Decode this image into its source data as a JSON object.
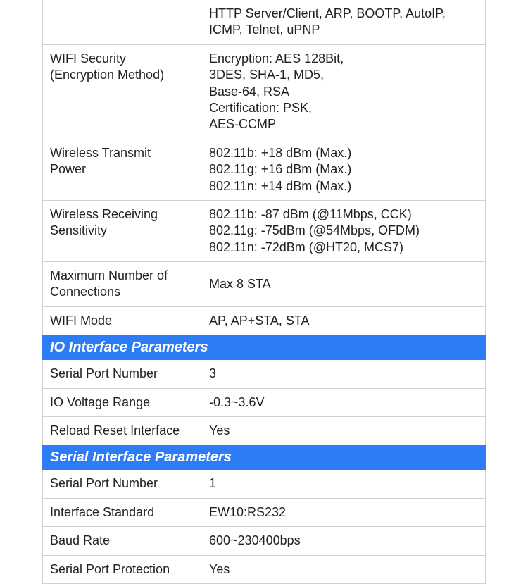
{
  "colors": {
    "section_bg": "#2d7cf6",
    "section_text": "#ffffff",
    "border": "#d0d0d0",
    "text": "#222222",
    "background": "#ffffff"
  },
  "typography": {
    "base_font_size": 18,
    "header_font_size": 20,
    "font_family": "Arial"
  },
  "rows": {
    "r0": {
      "label": "",
      "value": "HTTP Server/Client, ARP, BOOTP, AutoIP,\nICMP, Telnet, uPNP"
    },
    "r1": {
      "label": "WIFI Security\n(Encryption Method)",
      "value": "Encryption: AES 128Bit,\n3DES, SHA-1, MD5,\nBase-64, RSA\nCertification: PSK,\nAES-CCMP"
    },
    "r2": {
      "label": "Wireless Transmit Power",
      "value": "802.11b: +18 dBm (Max.)\n802.11g: +16 dBm (Max.)\n802.11n: +14 dBm (Max.)"
    },
    "r3": {
      "label": "Wireless Receiving Sensitivity",
      "value": "802.11b: -87 dBm (@11Mbps, CCK)\n802.11g: -75dBm (@54Mbps, OFDM)\n802.11n: -72dBm (@HT20, MCS7)"
    },
    "r4": {
      "label": "Maximum Number of Connections",
      "value": "Max 8 STA"
    },
    "r5": {
      "label": "WIFI Mode",
      "value": "AP, AP+STA, STA"
    },
    "s1": {
      "title": "IO Interface Parameters"
    },
    "r6": {
      "label": "Serial Port Number",
      "value": "3"
    },
    "r7": {
      "label": "IO Voltage Range",
      "value": "-0.3~3.6V"
    },
    "r8": {
      "label": "Reload Reset Interface",
      "value": "Yes"
    },
    "s2": {
      "title": "Serial Interface Parameters"
    },
    "r9": {
      "label": "Serial Port Number",
      "value": "1"
    },
    "r10": {
      "label": "Interface Standard",
      "value": "EW10:RS232"
    },
    "r11": {
      "label": "Baud Rate",
      "value": "600~230400bps"
    },
    "r12": {
      "label": "Serial Port Protection",
      "value": "Yes"
    }
  }
}
